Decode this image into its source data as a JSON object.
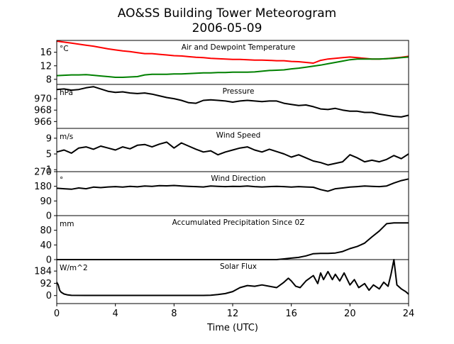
{
  "figure": {
    "title": "AO&SS Building Tower Meteorogram",
    "subtitle": "2006-05-09",
    "xlabel": "Time (UTC)",
    "xlim": [
      0,
      24
    ],
    "xticks": [
      0,
      4,
      8,
      12,
      16,
      20,
      24
    ]
  },
  "chart_data": [
    {
      "id": "temperature",
      "type": "line",
      "title": "Air and Dewpoint Temperature",
      "unit": "°C",
      "ylim": [
        6.5,
        19.5
      ],
      "yticks": [
        8,
        12,
        16
      ],
      "x": [
        0,
        0.5,
        1,
        1.5,
        2,
        2.5,
        3,
        3.5,
        4,
        4.5,
        5,
        5.5,
        6,
        6.5,
        7,
        7.5,
        8,
        8.5,
        9,
        9.5,
        10,
        10.5,
        11,
        11.5,
        12,
        12.5,
        13,
        13.5,
        14,
        14.5,
        15,
        15.5,
        16,
        16.5,
        17,
        17.5,
        18,
        18.5,
        19,
        19.5,
        20,
        20.5,
        21,
        21.5,
        22,
        22.5,
        23,
        23.5,
        24
      ],
      "series": [
        {
          "color": "#ff0000",
          "values": [
            19.3,
            19.0,
            18.7,
            18.4,
            18.1,
            17.8,
            17.4,
            17.0,
            16.7,
            16.4,
            16.2,
            15.9,
            15.6,
            15.6,
            15.4,
            15.2,
            15.0,
            14.9,
            14.7,
            14.5,
            14.4,
            14.2,
            14.1,
            14.0,
            13.9,
            13.9,
            13.8,
            13.7,
            13.7,
            13.6,
            13.5,
            13.5,
            13.3,
            13.2,
            13.0,
            12.8,
            13.6,
            14.0,
            14.2,
            14.4,
            14.6,
            14.4,
            14.2,
            14.0,
            14.0,
            14.1,
            14.3,
            14.5,
            14.8
          ]
        },
        {
          "color": "#008000",
          "values": [
            9.1,
            9.2,
            9.3,
            9.3,
            9.4,
            9.2,
            9.0,
            8.8,
            8.6,
            8.6,
            8.7,
            8.8,
            9.3,
            9.5,
            9.5,
            9.5,
            9.6,
            9.6,
            9.7,
            9.8,
            9.9,
            9.9,
            10.0,
            10.0,
            10.1,
            10.1,
            10.1,
            10.2,
            10.4,
            10.6,
            10.7,
            10.8,
            11.1,
            11.3,
            11.6,
            11.9,
            12.2,
            12.6,
            13.0,
            13.4,
            13.8,
            14.0,
            14.0,
            14.0,
            14.0,
            14.1,
            14.2,
            14.4,
            14.6
          ]
        }
      ]
    },
    {
      "id": "pressure",
      "type": "line",
      "title": "Pressure",
      "unit": "hPa",
      "ylim": [
        964.8,
        972.5
      ],
      "yticks": [
        966,
        968,
        970
      ],
      "x": [
        0,
        0.5,
        1,
        1.5,
        2,
        2.5,
        3,
        3.5,
        4,
        4.5,
        5,
        5.5,
        6,
        6.5,
        7,
        7.5,
        8,
        8.5,
        9,
        9.5,
        10,
        10.5,
        11,
        11.5,
        12,
        12.5,
        13,
        13.5,
        14,
        14.5,
        15,
        15.5,
        16,
        16.5,
        17,
        17.5,
        18,
        18.5,
        19,
        19.5,
        20,
        20.5,
        21,
        21.5,
        22,
        22.5,
        23,
        23.5,
        24
      ],
      "series": [
        {
          "color": "#000000",
          "values": [
            971.6,
            971.7,
            971.5,
            971.6,
            971.9,
            972.1,
            971.7,
            971.3,
            971.1,
            971.2,
            971.0,
            970.9,
            971.0,
            970.8,
            970.5,
            970.2,
            970.0,
            969.7,
            969.3,
            969.2,
            969.7,
            969.8,
            969.7,
            969.6,
            969.4,
            969.6,
            969.7,
            969.6,
            969.5,
            969.6,
            969.6,
            969.2,
            969.0,
            968.8,
            968.9,
            968.6,
            968.2,
            968.1,
            968.3,
            968.0,
            967.8,
            967.8,
            967.6,
            967.6,
            967.3,
            967.1,
            966.9,
            966.8,
            967.1
          ]
        }
      ]
    },
    {
      "id": "wind_speed",
      "type": "line",
      "title": "Wind Speed",
      "unit": "m/s",
      "ylim": [
        0.5,
        11.5
      ],
      "yticks": [
        1,
        5,
        9
      ],
      "x": [
        0,
        0.5,
        1,
        1.5,
        2,
        2.5,
        3,
        3.5,
        4,
        4.5,
        5,
        5.5,
        6,
        6.5,
        7,
        7.5,
        8,
        8.5,
        9,
        9.5,
        10,
        10.5,
        11,
        11.5,
        12,
        12.5,
        13,
        13.5,
        14,
        14.5,
        15,
        15.5,
        16,
        16.5,
        17,
        17.5,
        18,
        18.5,
        19,
        19.5,
        20,
        20.5,
        21,
        21.5,
        22,
        22.5,
        23,
        23.5,
        24
      ],
      "series": [
        {
          "color": "#000000",
          "values": [
            5.5,
            6.0,
            5.2,
            6.5,
            6.8,
            6.2,
            7.0,
            6.5,
            6.0,
            6.8,
            6.3,
            7.2,
            7.4,
            6.8,
            7.5,
            8.0,
            6.5,
            7.8,
            7.0,
            6.2,
            5.5,
            5.8,
            4.8,
            5.5,
            6.0,
            6.5,
            6.8,
            6.0,
            5.5,
            6.2,
            5.6,
            5.0,
            4.2,
            4.8,
            4.0,
            3.2,
            2.8,
            2.2,
            2.6,
            3.0,
            4.8,
            4.0,
            3.0,
            3.4,
            3.0,
            3.6,
            4.6,
            3.8,
            5.0
          ]
        }
      ]
    },
    {
      "id": "wind_direction",
      "type": "line",
      "title": "Wind Direction",
      "unit": "°",
      "ylim": [
        0,
        270
      ],
      "yticks": [
        0,
        90,
        180,
        270
      ],
      "x": [
        0,
        0.5,
        1,
        1.5,
        2,
        2.5,
        3,
        3.5,
        4,
        4.5,
        5,
        5.5,
        6,
        6.5,
        7,
        7.5,
        8,
        8.5,
        9,
        9.5,
        10,
        10.5,
        11,
        11.5,
        12,
        12.5,
        13,
        13.5,
        14,
        14.5,
        15,
        15.5,
        16,
        16.5,
        17,
        17.5,
        18,
        18.5,
        19,
        19.5,
        20,
        20.5,
        21,
        21.5,
        22,
        22.5,
        23,
        23.5,
        24
      ],
      "series": [
        {
          "color": "#000000",
          "values": [
            168,
            165,
            162,
            170,
            165,
            175,
            172,
            176,
            178,
            175,
            180,
            177,
            182,
            180,
            184,
            183,
            185,
            182,
            180,
            178,
            176,
            182,
            180,
            178,
            180,
            179,
            182,
            178,
            176,
            178,
            180,
            178,
            175,
            178,
            176,
            174,
            160,
            150,
            165,
            170,
            175,
            178,
            182,
            180,
            178,
            182,
            200,
            215,
            225
          ]
        }
      ]
    },
    {
      "id": "precipitation",
      "type": "line",
      "title": "Accumulated Precipitation Since 0Z",
      "unit": "mm",
      "ylim": [
        0,
        120
      ],
      "yticks": [
        0,
        40,
        80
      ],
      "x": [
        0,
        1,
        2,
        3,
        4,
        5,
        6,
        7,
        8,
        9,
        10,
        11,
        12,
        13,
        14,
        15,
        15.5,
        16,
        16.5,
        17,
        17.5,
        18,
        18.5,
        19,
        19.5,
        20,
        20.5,
        21,
        21.5,
        22,
        22.5,
        23,
        23.5,
        24
      ],
      "series": [
        {
          "color": "#000000",
          "values": [
            0,
            0,
            0,
            0,
            0,
            0,
            0,
            0,
            0,
            0,
            0,
            0,
            0,
            0,
            0,
            0,
            2,
            4,
            6,
            10,
            16,
            17,
            17,
            18,
            22,
            30,
            36,
            45,
            62,
            78,
            98,
            100,
            100,
            100
          ]
        }
      ]
    },
    {
      "id": "solar",
      "type": "line",
      "title": "Solar Flux",
      "unit": "W/m^2",
      "ylim": [
        -60,
        270
      ],
      "yticks": [
        0,
        92,
        184
      ],
      "x": [
        0,
        0.1,
        0.2,
        0.3,
        0.5,
        0.75,
        1,
        2,
        3,
        4,
        5,
        6,
        7,
        8,
        9,
        10,
        10.5,
        11,
        11.5,
        12,
        12.5,
        13,
        13.5,
        14,
        14.5,
        15,
        15.5,
        15.8,
        16,
        16.3,
        16.6,
        17,
        17.5,
        17.8,
        18,
        18.2,
        18.5,
        18.8,
        19,
        19.3,
        19.6,
        20,
        20.3,
        20.6,
        21,
        21.3,
        21.6,
        22,
        22.3,
        22.6,
        22.8,
        23,
        23.2,
        23.5,
        23.8,
        24
      ],
      "series": [
        {
          "color": "#000000",
          "values": [
            100,
            80,
            40,
            25,
            12,
            5,
            2,
            1,
            1,
            1,
            1,
            1,
            1,
            1,
            1,
            1,
            3,
            8,
            15,
            30,
            60,
            75,
            70,
            80,
            70,
            60,
            100,
            130,
            110,
            70,
            60,
            110,
            150,
            90,
            170,
            120,
            180,
            120,
            160,
            110,
            170,
            80,
            120,
            60,
            90,
            40,
            80,
            50,
            100,
            70,
            160,
            270,
            80,
            50,
            30,
            10
          ]
        }
      ]
    }
  ]
}
